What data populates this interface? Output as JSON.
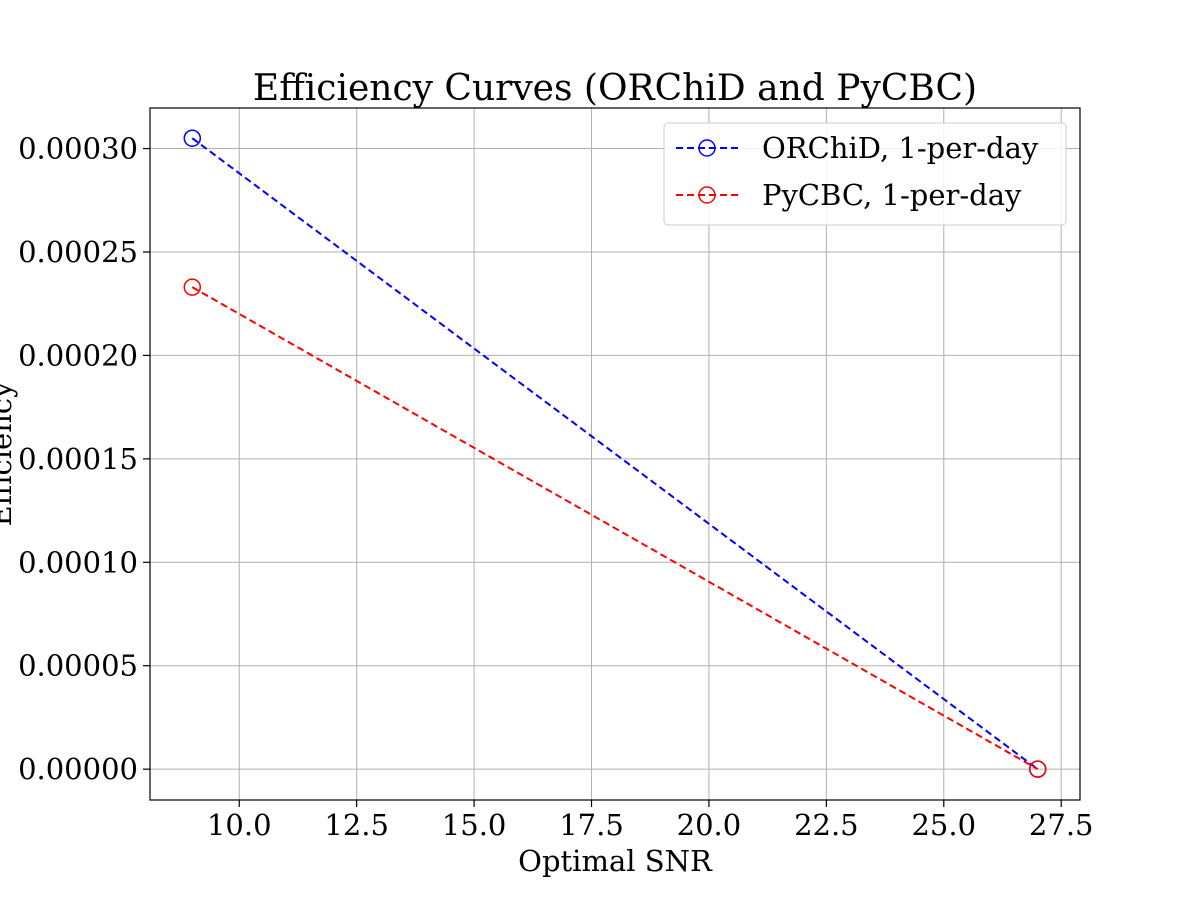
{
  "chart_data": {
    "type": "line",
    "title": "Efficiency Curves (ORChiD and PyCBC)",
    "xlabel": "Optimal SNR",
    "ylabel": "Efficiency",
    "xlim": [
      8.1,
      27.9
    ],
    "ylim": [
      -1.49e-05,
      0.0003196
    ],
    "xticks": [
      10.0,
      12.5,
      15.0,
      17.5,
      20.0,
      22.5,
      25.0,
      27.5
    ],
    "xtick_labels": [
      "10.0",
      "12.5",
      "15.0",
      "17.5",
      "20.0",
      "22.5",
      "25.0",
      "27.5"
    ],
    "yticks": [
      0.0,
      5e-05,
      0.0001,
      0.00015,
      0.0002,
      0.00025,
      0.0003
    ],
    "ytick_labels": [
      "0.00000",
      "0.00005",
      "0.00010",
      "0.00015",
      "0.00020",
      "0.00025",
      "0.00030"
    ],
    "grid": true,
    "legend_position": "top-right",
    "series": [
      {
        "name": "ORChiD, 1-per-day",
        "color": "#0000ff",
        "linestyle": "dashed",
        "marker": "open-circle",
        "x": [
          9.0,
          27.0
        ],
        "y": [
          0.000305,
          0.0
        ]
      },
      {
        "name": "PyCBC, 1-per-day",
        "color": "#ff0000",
        "linestyle": "dashed",
        "marker": "open-circle",
        "x": [
          9.0,
          27.0
        ],
        "y": [
          0.000233,
          0.0
        ]
      }
    ]
  }
}
